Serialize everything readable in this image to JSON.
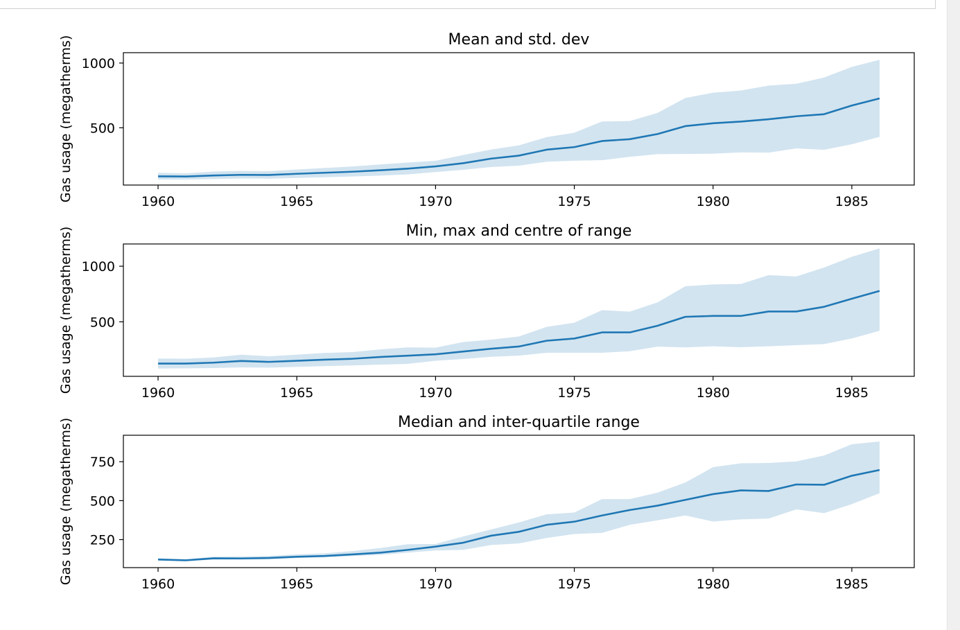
{
  "colors": {
    "line": "#1f77b4",
    "band": "#1f77b4",
    "band_opacity": 0.2,
    "frame": "#000000"
  },
  "chart_data": [
    {
      "type": "line",
      "title": "Mean and std. dev",
      "xlabel": "",
      "ylabel": "Gas usage (megatherms)",
      "xlim": [
        1958.75,
        1987.25
      ],
      "ylim": [
        58,
        1080
      ],
      "xticks": [
        1960,
        1965,
        1970,
        1975,
        1980,
        1985
      ],
      "yticks": [
        500,
        1000
      ],
      "grid": false,
      "x": [
        1960,
        1961,
        1962,
        1963,
        1964,
        1965,
        1966,
        1967,
        1968,
        1969,
        1970,
        1971,
        1972,
        1973,
        1974,
        1975,
        1976,
        1977,
        1978,
        1979,
        1980,
        1981,
        1982,
        1983,
        1984,
        1985,
        1986
      ],
      "series": [
        {
          "values": [
            125,
            124,
            132,
            137,
            136,
            145,
            153,
            161,
            172,
            185,
            202,
            227,
            262,
            285,
            331,
            351,
            398,
            412,
            452,
            513,
            535,
            548,
            566,
            589,
            605,
            672,
            727
          ]
        }
      ],
      "bands": [
        {
          "lower": [
            100,
            100,
            104,
            108,
            107,
            113,
            118,
            124,
            131,
            140,
            158,
            176,
            197,
            208,
            238,
            246,
            250,
            276,
            297,
            298,
            300,
            310,
            308,
            341,
            330,
            373,
            430
          ],
          "upper": [
            152,
            148,
            162,
            167,
            165,
            178,
            190,
            201,
            217,
            232,
            245,
            290,
            332,
            364,
            428,
            462,
            549,
            552,
            615,
            730,
            771,
            788,
            826,
            840,
            888,
            970,
            1025
          ]
        }
      ]
    },
    {
      "type": "line",
      "title": "Min, max and centre of range",
      "xlabel": "",
      "ylabel": "Gas usage (megatherms)",
      "xlim": [
        1958.75,
        1987.25
      ],
      "ylim": [
        10,
        1200
      ],
      "xticks": [
        1960,
        1965,
        1970,
        1975,
        1980,
        1985
      ],
      "yticks": [
        500,
        1000
      ],
      "grid": false,
      "x": [
        1960,
        1961,
        1962,
        1963,
        1964,
        1965,
        1966,
        1967,
        1968,
        1969,
        1970,
        1971,
        1972,
        1973,
        1974,
        1975,
        1976,
        1977,
        1978,
        1979,
        1980,
        1981,
        1982,
        1983,
        1984,
        1985,
        1986
      ],
      "series": [
        {
          "values": [
            125,
            125,
            133,
            148,
            140,
            150,
            160,
            168,
            184,
            196,
            208,
            233,
            258,
            278,
            330,
            350,
            405,
            405,
            465,
            545,
            553,
            553,
            593,
            593,
            635,
            708,
            778
          ]
        }
      ],
      "bands": [
        {
          "lower": [
            80,
            82,
            85,
            90,
            88,
            95,
            102,
            108,
            115,
            122,
            150,
            166,
            186,
            196,
            222,
            222,
            222,
            236,
            277,
            270,
            280,
            272,
            280,
            290,
            300,
            350,
            420
          ],
          "upper": [
            170,
            168,
            180,
            205,
            190,
            205,
            220,
            228,
            252,
            270,
            268,
            318,
            340,
            368,
            455,
            492,
            605,
            592,
            675,
            820,
            836,
            840,
            920,
            908,
            988,
            1085,
            1160
          ]
        }
      ]
    },
    {
      "type": "line",
      "title": "Median and inter-quartile range",
      "xlabel": "",
      "ylabel": "Gas usage (megatherms)",
      "xlim": [
        1958.75,
        1987.25
      ],
      "ylim": [
        70,
        920
      ],
      "xticks": [
        1960,
        1965,
        1970,
        1975,
        1980,
        1985
      ],
      "yticks": [
        250,
        500,
        750
      ],
      "grid": false,
      "x": [
        1960,
        1961,
        1962,
        1963,
        1964,
        1965,
        1966,
        1967,
        1968,
        1969,
        1970,
        1971,
        1972,
        1973,
        1974,
        1975,
        1976,
        1977,
        1978,
        1979,
        1980,
        1981,
        1982,
        1983,
        1984,
        1985,
        1986
      ],
      "series": [
        {
          "values": [
            122,
            117,
            130,
            129,
            132,
            140,
            145,
            155,
            166,
            184,
            205,
            230,
            275,
            300,
            345,
            365,
            405,
            440,
            468,
            505,
            542,
            566,
            562,
            604,
            602,
            660,
            697
          ]
        }
      ],
      "bands": [
        {
          "lower": [
            116,
            112,
            122,
            122,
            124,
            132,
            136,
            144,
            152,
            166,
            180,
            184,
            215,
            225,
            260,
            286,
            293,
            345,
            374,
            405,
            366,
            380,
            385,
            444,
            420,
            478,
            548
          ],
          "upper": [
            130,
            123,
            140,
            142,
            145,
            155,
            162,
            176,
            196,
            220,
            222,
            270,
            315,
            360,
            412,
            424,
            510,
            510,
            552,
            616,
            715,
            740,
            742,
            752,
            790,
            862,
            880
          ]
        }
      ]
    }
  ]
}
